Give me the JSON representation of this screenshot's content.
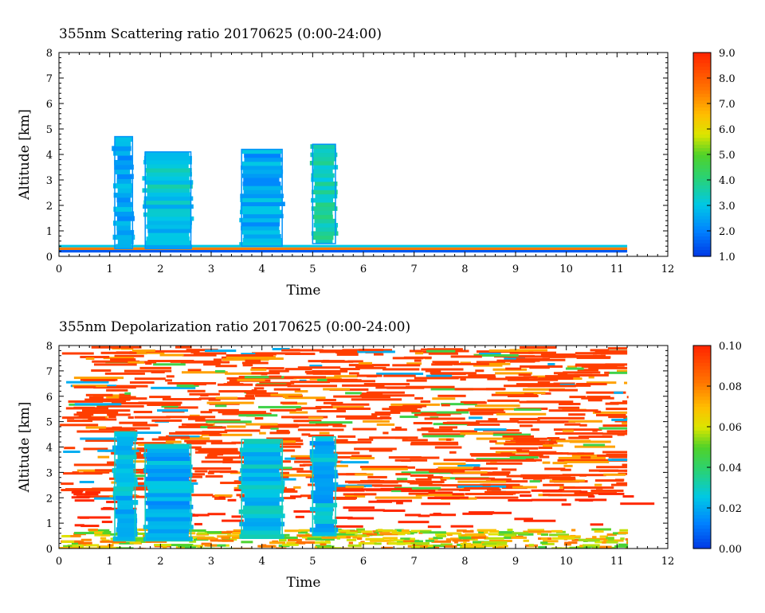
{
  "chart_data": [
    {
      "type": "heatmap",
      "title": "355nm Scattering ratio  20170625 (0:00-24:00)",
      "xlabel": "Time",
      "ylabel": "Altitude [km]",
      "xlim": [
        0,
        12
      ],
      "ylim": [
        0,
        8
      ],
      "x_ticks": [
        "0",
        "1",
        "2",
        "3",
        "4",
        "5",
        "6",
        "7",
        "8",
        "9",
        "10",
        "11",
        "12"
      ],
      "y_ticks": [
        "0",
        "1",
        "2",
        "3",
        "4",
        "5",
        "6",
        "7",
        "8"
      ],
      "colorbar": {
        "range": [
          1.0,
          9.0
        ],
        "ticks": [
          "1.0",
          "2.0",
          "3.0",
          "4.0",
          "5.0",
          "6.0",
          "7.0",
          "8.0",
          "9.0"
        ]
      },
      "data_extent_time": 11.2,
      "features": [
        {
          "time_start": 0.0,
          "time_end": 11.2,
          "alt_bottom": 0.1,
          "alt_top": 0.5,
          "value": 6.0
        },
        {
          "time_start": 1.1,
          "time_end": 1.45,
          "alt_bottom": 0.3,
          "alt_top": 4.7,
          "value": 2.5
        },
        {
          "time_start": 1.7,
          "time_end": 2.6,
          "alt_bottom": 0.3,
          "alt_top": 4.1,
          "value": 3.0
        },
        {
          "time_start": 3.6,
          "time_end": 4.4,
          "alt_bottom": 0.4,
          "alt_top": 4.2,
          "value": 2.5
        },
        {
          "time_start": 5.0,
          "time_end": 5.45,
          "alt_bottom": 0.5,
          "alt_top": 4.4,
          "value": 3.5
        }
      ]
    },
    {
      "type": "heatmap",
      "title": "355nm Depolarization ratio  20170625 (0:00-24:00)",
      "xlabel": "Time",
      "ylabel": "Altitude [km]",
      "xlim": [
        0,
        12
      ],
      "ylim": [
        0,
        8
      ],
      "x_ticks": [
        "0",
        "1",
        "2",
        "3",
        "4",
        "5",
        "6",
        "7",
        "8",
        "9",
        "10",
        "11",
        "12"
      ],
      "y_ticks": [
        "0",
        "1",
        "2",
        "3",
        "4",
        "5",
        "6",
        "7",
        "8"
      ],
      "colorbar": {
        "range": [
          0.0,
          0.1
        ],
        "ticks": [
          "0.00",
          "0.02",
          "0.04",
          "0.06",
          "0.08",
          "0.10"
        ]
      },
      "data_extent_time": 11.2,
      "features": [
        {
          "time_start": 0.0,
          "time_end": 11.2,
          "alt_bottom": 2.0,
          "alt_top": 8.0,
          "value": 0.1
        },
        {
          "time_start": 0.0,
          "time_end": 11.2,
          "alt_bottom": 0.0,
          "alt_top": 0.8,
          "value": 0.065
        },
        {
          "time_start": 1.1,
          "time_end": 1.5,
          "alt_bottom": 0.3,
          "alt_top": 4.6,
          "value": 0.022
        },
        {
          "time_start": 1.7,
          "time_end": 2.6,
          "alt_bottom": 0.3,
          "alt_top": 4.1,
          "value": 0.02
        },
        {
          "time_start": 3.6,
          "time_end": 4.4,
          "alt_bottom": 0.4,
          "alt_top": 4.3,
          "value": 0.025
        },
        {
          "time_start": 5.0,
          "time_end": 5.45,
          "alt_bottom": 0.5,
          "alt_top": 4.4,
          "value": 0.022
        }
      ]
    }
  ]
}
